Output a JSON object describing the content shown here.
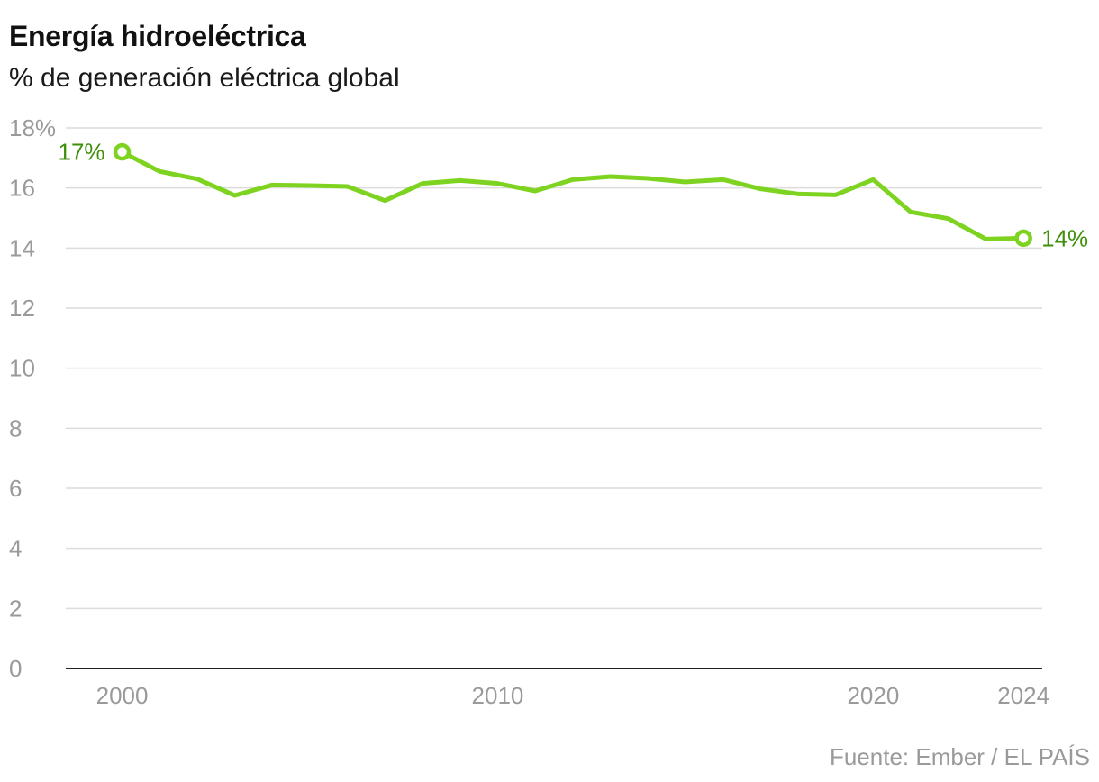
{
  "header": {
    "title": "Energía hidroeléctrica",
    "subtitle": "% de generación eléctrica global"
  },
  "footer": {
    "source": "Fuente: Ember / EL PAÍS"
  },
  "colors": {
    "line": "#7ed321",
    "label": "#3f8f0a",
    "grid": "#dcdcdc",
    "axis": "#222222",
    "tick": "#9a9a9a"
  },
  "chart_data": {
    "type": "line",
    "title": "Energía hidroeléctrica",
    "subtitle": "% de generación eléctrica global",
    "xlabel": "",
    "ylabel": "% de generación eléctrica global",
    "x": [
      2000,
      2001,
      2002,
      2003,
      2004,
      2005,
      2006,
      2007,
      2008,
      2009,
      2010,
      2011,
      2012,
      2013,
      2014,
      2015,
      2016,
      2017,
      2018,
      2019,
      2020,
      2021,
      2022,
      2023,
      2024
    ],
    "series": [
      {
        "name": "Energía hidroeléctrica",
        "values": [
          17.2,
          16.55,
          16.3,
          15.75,
          16.1,
          16.08,
          16.05,
          15.58,
          16.15,
          16.25,
          16.15,
          15.9,
          16.28,
          16.38,
          16.32,
          16.2,
          16.28,
          15.97,
          15.8,
          15.77,
          16.28,
          15.2,
          14.98,
          14.3,
          14.33
        ]
      }
    ],
    "xlim": [
      1998.5,
      2024.5
    ],
    "ylim": [
      0,
      18
    ],
    "x_ticks": [
      2000,
      2010,
      2020,
      2024
    ],
    "x_tick_labels": [
      "2000",
      "2010",
      "2020",
      "2024"
    ],
    "y_ticks": [
      0,
      2,
      4,
      6,
      8,
      10,
      12,
      14,
      16,
      18
    ],
    "y_tick_labels": [
      "0",
      "2",
      "4",
      "6",
      "8",
      "10",
      "12",
      "14",
      "16",
      "18%"
    ],
    "grid": true,
    "legend": "none",
    "annotations": [
      {
        "x": 2000,
        "y": 17.2,
        "text": "17%",
        "position": "left"
      },
      {
        "x": 2024,
        "y": 14.33,
        "text": "14%",
        "position": "right"
      }
    ]
  }
}
